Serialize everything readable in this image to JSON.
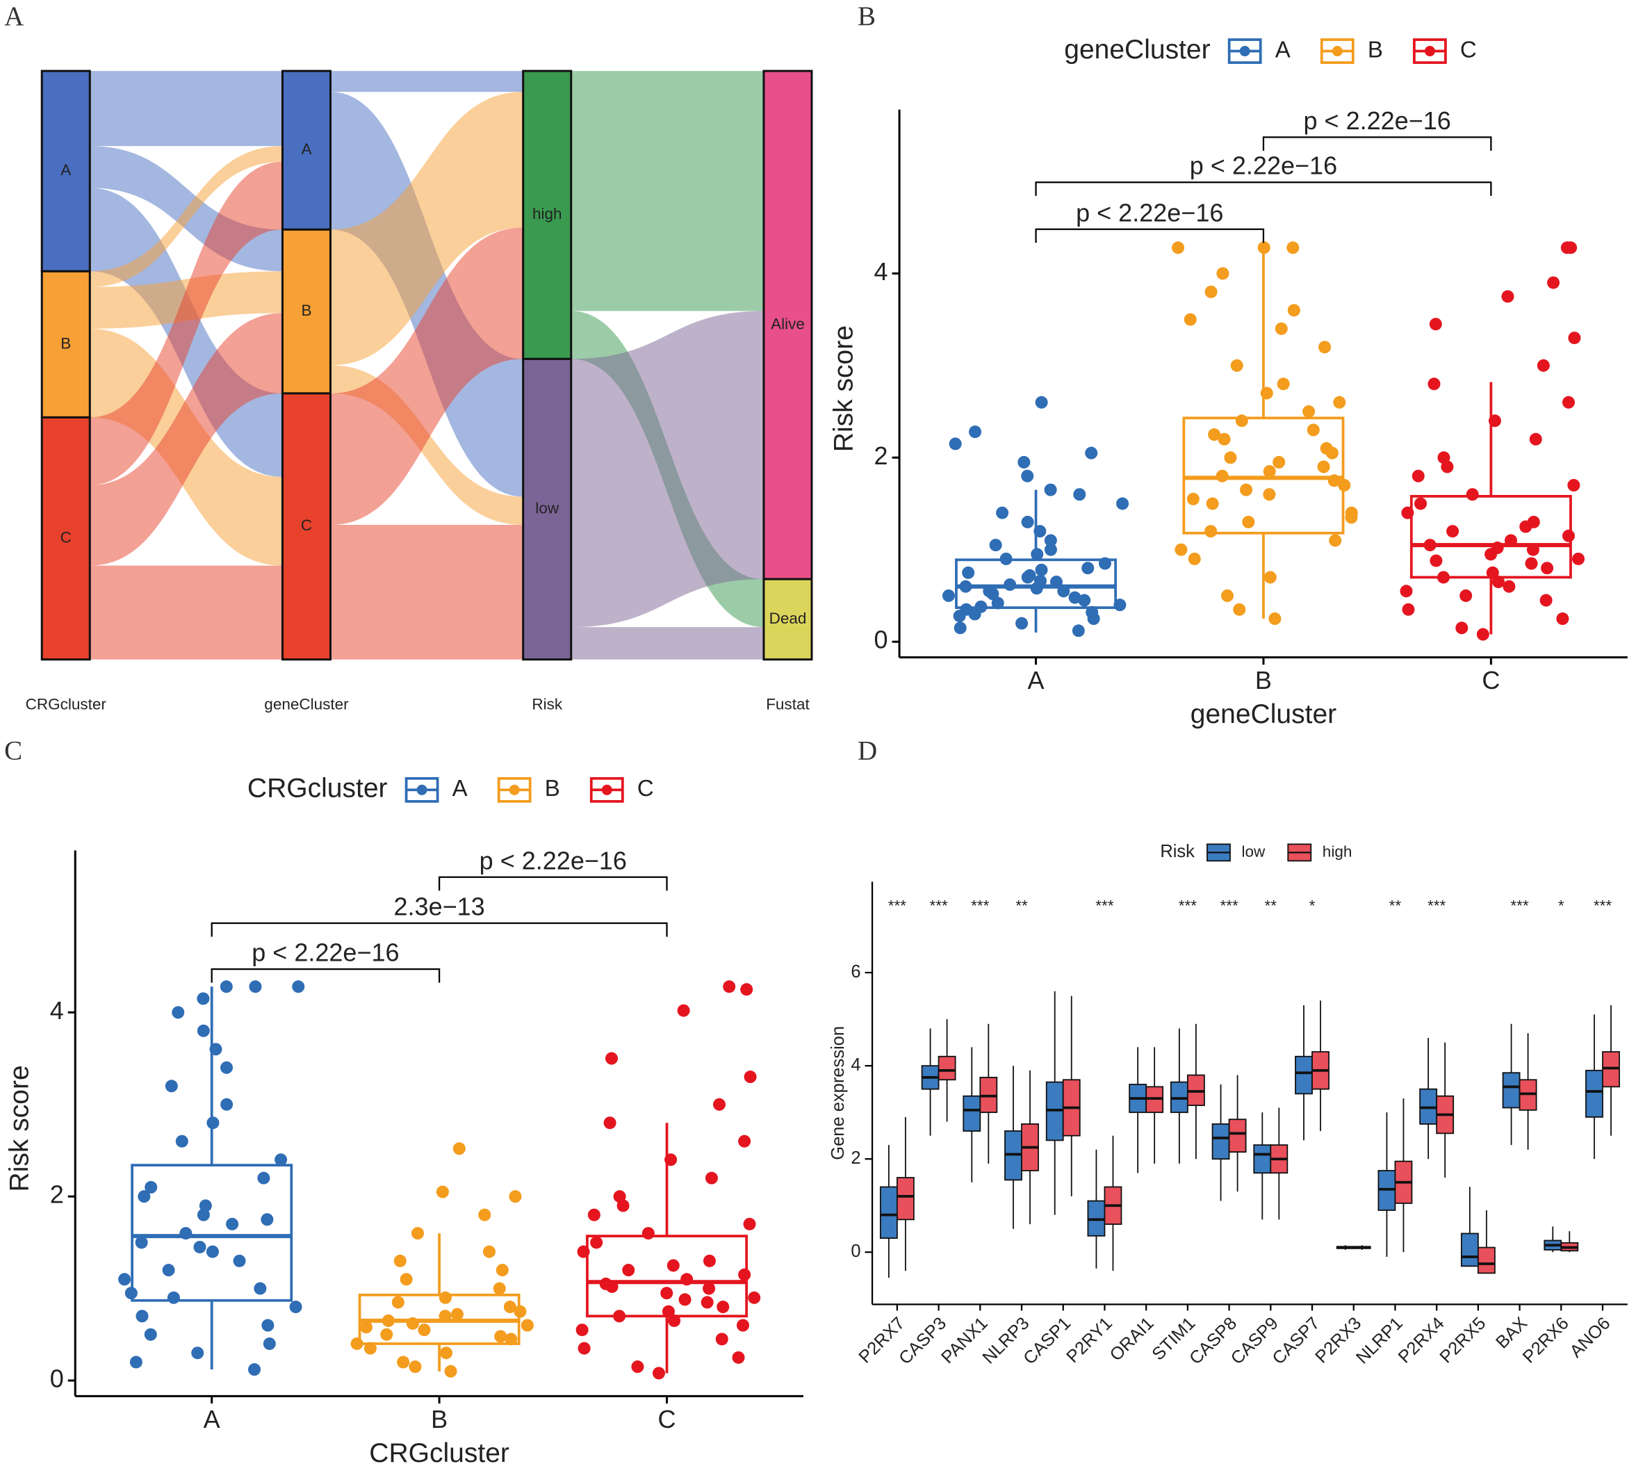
{
  "chart_data": [
    {
      "type": "sankey",
      "panel_label": "A",
      "stages": [
        {
          "name": "CRGcluster",
          "nodes": [
            {
              "name": "A",
              "value": 192,
              "color": "#4a6fc1",
              "flows": [
                72,
                40,
                80
              ]
            },
            {
              "name": "B",
              "value": 140,
              "color": "#f7a035",
              "flows": [
                15,
                40,
                85
              ]
            },
            {
              "name": "C",
              "value": 232,
              "color": "#e8412c",
              "flows": [
                65,
                77,
                90
              ]
            }
          ]
        },
        {
          "name": "geneCluster",
          "nodes": [
            {
              "name": "A",
              "value": 152,
              "color": "#4a6fc1",
              "flows": [
                20,
                132
              ]
            },
            {
              "name": "B",
              "value": 157,
              "color": "#f7a035",
              "flows": [
                130,
                27
              ]
            },
            {
              "name": "C",
              "value": 255,
              "color": "#e8412c",
              "flows": [
                126,
                129
              ]
            }
          ]
        },
        {
          "name": "Risk",
          "nodes": [
            {
              "name": "high",
              "value": 276,
              "color": "#3a9a4f",
              "flows": [
                230,
                46
              ]
            },
            {
              "name": "low",
              "value": 288,
              "color": "#7b6596",
              "flows": [
                257,
                31
              ]
            }
          ]
        },
        {
          "name": "Fustat",
          "nodes": [
            {
              "name": "Alive",
              "value": 487,
              "color": "#e8508a"
            },
            {
              "name": "Dead",
              "value": 77,
              "color": "#dcd55c"
            }
          ]
        }
      ]
    },
    {
      "type": "box",
      "panel_label": "B",
      "legend_title": "geneCluster",
      "x_label": "geneCluster",
      "y_label": "Risk score",
      "categories": [
        "A",
        "B",
        "C"
      ],
      "colors": [
        "#2f6db5",
        "#f39c1d",
        "#e4151f"
      ],
      "ylim": [
        -0.17,
        5.78
      ],
      "yticks": [
        0,
        2,
        4
      ],
      "boxes": [
        {
          "whisker_low": 0.1,
          "q1": 0.37,
          "median": 0.6,
          "q3": 0.89,
          "whisker_high": 1.65
        },
        {
          "whisker_low": 0.25,
          "q1": 1.18,
          "median": 1.78,
          "q3": 2.43,
          "whisker_high": 4.28
        },
        {
          "whisker_low": 0.08,
          "q1": 0.7,
          "median": 1.05,
          "q3": 1.58,
          "whisker_high": 2.82
        }
      ],
      "points": [
        [
          0.12,
          0.15,
          0.2,
          0.25,
          0.3,
          0.32,
          0.35,
          0.4,
          0.42,
          0.45,
          0.5,
          0.52,
          0.55,
          0.58,
          0.6,
          0.62,
          0.65,
          0.7,
          0.72,
          0.75,
          0.8,
          0.85,
          0.9,
          0.95,
          1.0,
          1.05,
          1.1,
          1.2,
          1.3,
          1.4,
          1.5,
          1.6,
          1.65,
          1.8,
          1.95,
          2.05,
          2.15,
          2.28,
          2.6,
          0.48,
          0.38,
          0.66,
          0.28,
          0.78,
          0.55
        ],
        [
          0.25,
          0.35,
          0.5,
          0.7,
          0.9,
          1.0,
          1.1,
          1.2,
          1.3,
          1.4,
          1.5,
          1.6,
          1.7,
          1.75,
          1.8,
          1.85,
          1.9,
          2.0,
          2.1,
          2.2,
          2.3,
          2.4,
          2.5,
          2.6,
          2.7,
          2.8,
          3.0,
          3.2,
          3.4,
          3.5,
          3.6,
          3.8,
          4.0,
          4.28,
          4.28,
          4.28,
          1.55,
          1.95,
          2.25,
          1.35,
          1.65,
          2.05
        ],
        [
          0.08,
          0.15,
          0.25,
          0.35,
          0.45,
          0.55,
          0.65,
          0.7,
          0.75,
          0.8,
          0.85,
          0.9,
          0.95,
          1.0,
          1.05,
          1.1,
          1.15,
          1.2,
          1.3,
          1.4,
          1.5,
          1.6,
          1.7,
          1.8,
          1.9,
          2.0,
          2.2,
          2.4,
          2.6,
          2.8,
          3.0,
          3.3,
          3.45,
          3.75,
          3.9,
          4.28,
          4.28,
          0.6,
          0.88,
          1.02,
          1.25,
          0.5
        ]
      ],
      "comparisons": [
        {
          "label": "p < 2.22e−16",
          "between": [
            "A",
            "B"
          ],
          "y": 4.48
        },
        {
          "label": "p < 2.22e−16",
          "between": [
            "A",
            "C"
          ],
          "y": 4.99
        },
        {
          "label": "p < 2.22e−16",
          "between": [
            "B",
            "C"
          ],
          "y": 5.48
        }
      ]
    },
    {
      "type": "box",
      "panel_label": "C",
      "legend_title": "CRGcluster",
      "x_label": "CRGcluster",
      "y_label": "Risk score",
      "categories": [
        "A",
        "B",
        "C"
      ],
      "colors": [
        "#2f6db5",
        "#f39c1d",
        "#e4151f"
      ],
      "ylim": [
        -0.17,
        5.76
      ],
      "yticks": [
        0,
        2,
        4
      ],
      "boxes": [
        {
          "whisker_low": 0.12,
          "q1": 0.87,
          "median": 1.57,
          "q3": 2.34,
          "whisker_high": 4.28
        },
        {
          "whisker_low": 0.1,
          "q1": 0.4,
          "median": 0.65,
          "q3": 0.93,
          "whisker_high": 1.6
        },
        {
          "whisker_low": 0.08,
          "q1": 0.7,
          "median": 1.07,
          "q3": 1.57,
          "whisker_high": 2.8
        }
      ],
      "points": [
        [
          0.12,
          0.2,
          0.3,
          0.4,
          0.5,
          0.6,
          0.7,
          0.8,
          0.9,
          1.0,
          1.1,
          1.2,
          1.3,
          1.4,
          1.5,
          1.6,
          1.7,
          1.8,
          1.9,
          2.0,
          2.2,
          2.4,
          2.6,
          2.8,
          3.0,
          3.2,
          3.4,
          3.6,
          3.8,
          4.0,
          4.28,
          4.28,
          4.28,
          4.15,
          1.45,
          1.75,
          0.95,
          2.1
        ],
        [
          0.1,
          0.15,
          0.2,
          0.3,
          0.35,
          0.4,
          0.45,
          0.5,
          0.55,
          0.6,
          0.65,
          0.7,
          0.75,
          0.8,
          0.85,
          0.9,
          1.0,
          1.1,
          1.2,
          1.3,
          1.4,
          1.6,
          1.8,
          2.0,
          2.05,
          2.52,
          0.62,
          0.48,
          0.72,
          0.58
        ],
        [
          0.08,
          0.15,
          0.25,
          0.35,
          0.45,
          0.55,
          0.65,
          0.7,
          0.75,
          0.8,
          0.85,
          0.9,
          0.95,
          1.0,
          1.05,
          1.1,
          1.15,
          1.2,
          1.3,
          1.4,
          1.5,
          1.6,
          1.7,
          1.8,
          1.9,
          2.0,
          2.2,
          2.4,
          2.6,
          2.8,
          3.0,
          3.3,
          3.5,
          4.02,
          4.28,
          4.25,
          0.6,
          0.88,
          1.02,
          1.25
        ]
      ],
      "comparisons": [
        {
          "label": "p < 2.22e−16",
          "between": [
            "A",
            "B"
          ],
          "y": 4.47
        },
        {
          "label": "2.3e−13",
          "between": [
            "A",
            "C"
          ],
          "y": 4.97
        },
        {
          "label": "p < 2.22e−16",
          "between": [
            "B",
            "C"
          ],
          "y": 5.47
        }
      ]
    },
    {
      "type": "grouped_box",
      "panel_label": "D",
      "legend_title": "Risk",
      "y_label": "Gene expression",
      "ylim": [
        -1.12,
        7.95
      ],
      "yticks": [
        0,
        2,
        4,
        6
      ],
      "categories": [
        "P2RX7",
        "CASP3",
        "PANX1",
        "NLRP3",
        "CASP1",
        "P2RY1",
        "ORAI1",
        "STIM1",
        "CASP8",
        "CASP9",
        "CASP7",
        "P2RX3",
        "NLRP1",
        "P2RX4",
        "P2RX5",
        "BAX",
        "P2RX6",
        "ANO6"
      ],
      "significance": [
        "***",
        "***",
        "***",
        "**",
        null,
        "***",
        null,
        "***",
        "***",
        "**",
        "*",
        null,
        "**",
        "***",
        null,
        "***",
        "*",
        "***"
      ],
      "series": [
        {
          "name": "low",
          "color": "#3b7bbf",
          "values": [
            [
              -0.55,
              0.3,
              0.8,
              1.4,
              2.3
            ],
            [
              2.5,
              3.5,
              3.75,
              4.0,
              4.8
            ],
            [
              1.5,
              2.6,
              3.05,
              3.35,
              4.4
            ],
            [
              0.5,
              1.55,
              2.1,
              2.6,
              4.0
            ],
            [
              0.8,
              2.4,
              3.05,
              3.65,
              5.6
            ],
            [
              -0.35,
              0.35,
              0.7,
              1.1,
              2.2
            ],
            [
              1.7,
              3.0,
              3.3,
              3.6,
              4.4
            ],
            [
              1.9,
              3.0,
              3.3,
              3.65,
              4.8
            ],
            [
              1.1,
              2.0,
              2.45,
              2.75,
              3.6
            ],
            [
              0.7,
              1.7,
              2.1,
              2.3,
              3.0
            ],
            [
              2.4,
              3.4,
              3.85,
              4.2,
              5.3
            ],
            [
              0.05,
              0.08,
              0.1,
              0.12,
              0.15
            ],
            [
              -0.1,
              0.9,
              1.35,
              1.75,
              3.0
            ],
            [
              2.0,
              2.75,
              3.1,
              3.5,
              4.6
            ],
            [
              -0.3,
              -0.3,
              -0.1,
              0.4,
              1.4
            ],
            [
              2.3,
              3.1,
              3.55,
              3.85,
              4.9
            ],
            [
              0.0,
              0.05,
              0.15,
              0.25,
              0.55
            ],
            [
              2.0,
              2.9,
              3.45,
              3.9,
              5.1
            ]
          ]
        },
        {
          "name": "high",
          "color": "#e8505b",
          "values": [
            [
              -0.4,
              0.7,
              1.2,
              1.6,
              2.9
            ],
            [
              2.8,
              3.7,
              3.9,
              4.2,
              5.0
            ],
            [
              1.9,
              3.0,
              3.35,
              3.75,
              4.9
            ],
            [
              0.6,
              1.75,
              2.25,
              2.75,
              3.9
            ],
            [
              1.2,
              2.5,
              3.1,
              3.7,
              5.5
            ],
            [
              -0.4,
              0.6,
              1.0,
              1.4,
              2.5
            ],
            [
              1.9,
              3.0,
              3.3,
              3.55,
              4.4
            ],
            [
              2.0,
              3.15,
              3.45,
              3.8,
              4.9
            ],
            [
              1.3,
              2.15,
              2.55,
              2.85,
              3.8
            ],
            [
              0.7,
              1.7,
              2.0,
              2.3,
              3.1
            ],
            [
              2.6,
              3.5,
              3.9,
              4.3,
              5.4
            ],
            [
              0.05,
              0.08,
              0.1,
              0.12,
              0.15
            ],
            [
              0.0,
              1.05,
              1.5,
              1.95,
              3.3
            ],
            [
              1.6,
              2.55,
              2.95,
              3.35,
              4.5
            ],
            [
              -0.4,
              -0.45,
              -0.25,
              0.1,
              0.9
            ],
            [
              2.2,
              3.05,
              3.4,
              3.7,
              4.7
            ],
            [
              0.0,
              0.03,
              0.1,
              0.2,
              0.45
            ],
            [
              2.5,
              3.55,
              3.95,
              4.3,
              5.3
            ]
          ]
        }
      ]
    }
  ]
}
